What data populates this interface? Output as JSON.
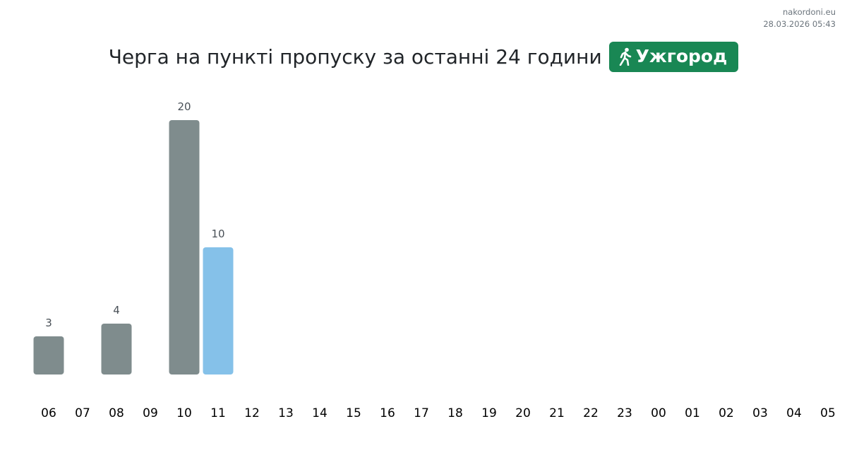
{
  "header": {
    "site": "nakordoni.eu",
    "timestamp": "28.03.2026 05:43"
  },
  "chart_data": {
    "type": "bar",
    "title": "Черга на пункті пропуску за останні 24 години",
    "checkpoint": "Ужгород",
    "categories": [
      "06",
      "07",
      "08",
      "09",
      "10",
      "11",
      "12",
      "13",
      "14",
      "15",
      "16",
      "17",
      "18",
      "19",
      "20",
      "21",
      "22",
      "23",
      "00",
      "01",
      "02",
      "03",
      "04",
      "05"
    ],
    "values": [
      3,
      null,
      4,
      null,
      20,
      10,
      null,
      null,
      null,
      null,
      null,
      null,
      null,
      null,
      null,
      null,
      null,
      null,
      null,
      null,
      null,
      null,
      null,
      null
    ],
    "colors": [
      "#7f8c8d",
      null,
      "#7f8c8d",
      null,
      "#7f8c8d",
      "#85c1e9",
      null,
      null,
      null,
      null,
      null,
      null,
      null,
      null,
      null,
      null,
      null,
      null,
      null,
      null,
      null,
      null,
      null,
      null
    ]
  }
}
